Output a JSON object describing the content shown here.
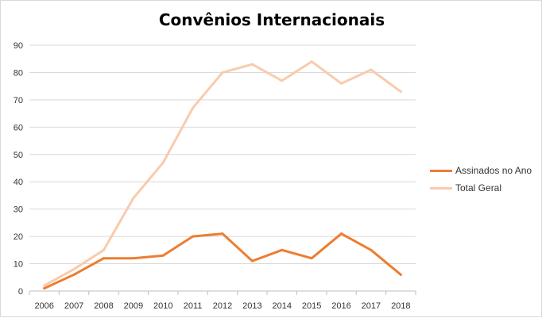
{
  "chart_data": {
    "type": "line",
    "title": "Convênios Internacionais",
    "categories": [
      "2006",
      "2007",
      "2008",
      "2009",
      "2010",
      "2011",
      "2012",
      "2013",
      "2014",
      "2015",
      "2016",
      "2017",
      "2018"
    ],
    "series": [
      {
        "name": "Assinados no Ano",
        "color": "#ed7d31",
        "values": [
          1,
          6,
          12,
          12,
          13,
          20,
          21,
          11,
          15,
          12,
          21,
          15,
          6
        ]
      },
      {
        "name": "Total Geral",
        "color": "#f8cbad",
        "values": [
          2,
          8,
          15,
          34,
          47,
          67,
          80,
          83,
          77,
          84,
          76,
          81,
          73
        ]
      }
    ],
    "ylim": [
      0,
      90
    ],
    "yticks": [
      0,
      10,
      20,
      30,
      40,
      50,
      60,
      70,
      80,
      90
    ],
    "grid": true,
    "legend_position": "right"
  }
}
